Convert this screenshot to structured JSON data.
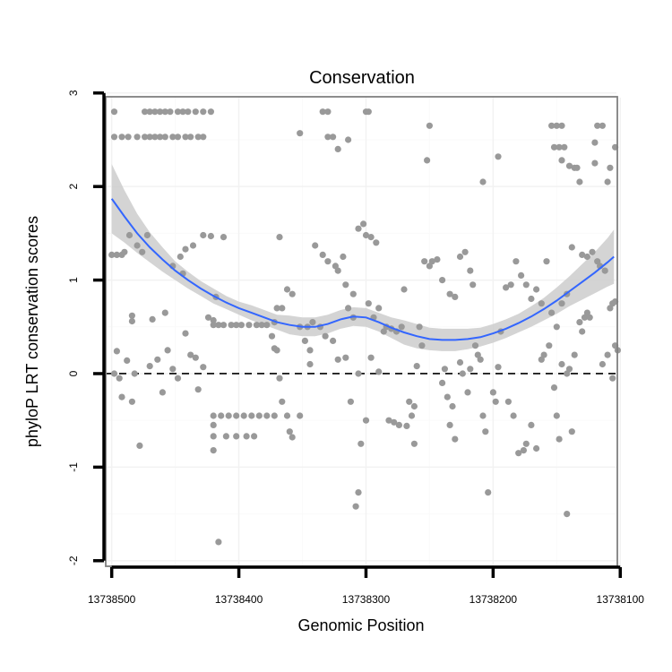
{
  "chart_data": {
    "type": "scatter",
    "title": "Conservation",
    "xlabel": "Genomic Position",
    "ylabel": "phyloP LRT conservation scores",
    "x_reversed": true,
    "xlim": [
      13738504,
      13738103
    ],
    "ylim": [
      -2.05,
      2.95
    ],
    "x_ticks": [
      13738500,
      13738400,
      13738300,
      13738200,
      13738100
    ],
    "x_tick_labels": [
      "13738500",
      "13738400",
      "13738300",
      "13738200",
      "13738100"
    ],
    "y_ticks": [
      -2,
      -1,
      0,
      1,
      2,
      3
    ],
    "y_tick_labels": [
      "-2",
      "-1",
      "0",
      "1",
      "2",
      "3"
    ],
    "grid": true,
    "reference_line": {
      "y": 0,
      "style": "dashed",
      "color": "#000000"
    },
    "point_color": "#999999",
    "smooth_color": "#3366ff",
    "band_color": "#cccccc",
    "points": [
      [
        13738498,
        2.8
      ],
      [
        13738498,
        2.53
      ],
      [
        13738492,
        2.53
      ],
      [
        13738487,
        2.53
      ],
      [
        13738480,
        2.53
      ],
      [
        13738474,
        2.8
      ],
      [
        13738470,
        2.8
      ],
      [
        13738466,
        2.8
      ],
      [
        13738462,
        2.8
      ],
      [
        13738458,
        2.8
      ],
      [
        13738454,
        2.8
      ],
      [
        13738448,
        2.8
      ],
      [
        13738444,
        2.8
      ],
      [
        13738440,
        2.8
      ],
      [
        13738434,
        2.8
      ],
      [
        13738428,
        2.8
      ],
      [
        13738422,
        2.8
      ],
      [
        13738474,
        2.53
      ],
      [
        13738470,
        2.53
      ],
      [
        13738466,
        2.53
      ],
      [
        13738462,
        2.53
      ],
      [
        13738458,
        2.53
      ],
      [
        13738452,
        2.53
      ],
      [
        13738448,
        2.53
      ],
      [
        13738442,
        2.53
      ],
      [
        13738438,
        2.53
      ],
      [
        13738432,
        2.53
      ],
      [
        13738428,
        2.53
      ],
      [
        13738500,
        1.27
      ],
      [
        13738496,
        1.27
      ],
      [
        13738492,
        1.27
      ],
      [
        13738490,
        1.3
      ],
      [
        13738486,
        1.48
      ],
      [
        13738480,
        1.37
      ],
      [
        13738476,
        1.3
      ],
      [
        13738472,
        1.48
      ],
      [
        13738468,
        0.58
      ],
      [
        13738484,
        0.62
      ],
      [
        13738484,
        0.56
      ],
      [
        13738458,
        0.65
      ],
      [
        13738452,
        1.15
      ],
      [
        13738446,
        1.25
      ],
      [
        13738442,
        1.33
      ],
      [
        13738444,
        1.07
      ],
      [
        13738436,
        1.37
      ],
      [
        13738428,
        1.48
      ],
      [
        13738422,
        1.47
      ],
      [
        13738412,
        1.46
      ],
      [
        13738420,
        0.52
      ],
      [
        13738416,
        0.52
      ],
      [
        13738412,
        0.52
      ],
      [
        13738406,
        0.52
      ],
      [
        13738402,
        0.52
      ],
      [
        13738398,
        0.52
      ],
      [
        13738392,
        0.52
      ],
      [
        13738386,
        0.52
      ],
      [
        13738382,
        0.52
      ],
      [
        13738378,
        0.52
      ],
      [
        13738372,
        0.55
      ],
      [
        13738370,
        0.7
      ],
      [
        13738366,
        0.7
      ],
      [
        13738362,
        0.9
      ],
      [
        13738358,
        0.85
      ],
      [
        13738352,
        0.5
      ],
      [
        13738346,
        0.5
      ],
      [
        13738342,
        0.55
      ],
      [
        13738498,
        0.0
      ],
      [
        13738496,
        0.24
      ],
      [
        13738494,
        -0.05
      ],
      [
        13738492,
        -0.25
      ],
      [
        13738488,
        0.14
      ],
      [
        13738484,
        -0.3
      ],
      [
        13738482,
        0.0
      ],
      [
        13738478,
        -0.77
      ],
      [
        13738470,
        0.08
      ],
      [
        13738464,
        0.15
      ],
      [
        13738460,
        -0.2
      ],
      [
        13738456,
        0.25
      ],
      [
        13738452,
        0.05
      ],
      [
        13738448,
        -0.05
      ],
      [
        13738442,
        0.43
      ],
      [
        13738438,
        0.2
      ],
      [
        13738434,
        0.17
      ],
      [
        13738432,
        -0.17
      ],
      [
        13738428,
        0.07
      ],
      [
        13738424,
        0.6
      ],
      [
        13738420,
        0.57
      ],
      [
        13738418,
        0.82
      ],
      [
        13738420,
        -0.45
      ],
      [
        13738414,
        -0.45
      ],
      [
        13738408,
        -0.45
      ],
      [
        13738402,
        -0.45
      ],
      [
        13738396,
        -0.45
      ],
      [
        13738390,
        -0.45
      ],
      [
        13738384,
        -0.45
      ],
      [
        13738378,
        -0.45
      ],
      [
        13738372,
        -0.45
      ],
      [
        13738420,
        -0.55
      ],
      [
        13738420,
        -0.67
      ],
      [
        13738410,
        -0.67
      ],
      [
        13738402,
        -0.67
      ],
      [
        13738394,
        -0.67
      ],
      [
        13738388,
        -0.67
      ],
      [
        13738420,
        -0.82
      ],
      [
        13738416,
        -1.8
      ],
      [
        13738374,
        0.4
      ],
      [
        13738372,
        0.27
      ],
      [
        13738370,
        0.25
      ],
      [
        13738368,
        -0.05
      ],
      [
        13738366,
        -0.3
      ],
      [
        13738362,
        -0.45
      ],
      [
        13738360,
        -0.62
      ],
      [
        13738358,
        -0.68
      ],
      [
        13738352,
        -0.45
      ],
      [
        13738348,
        0.35
      ],
      [
        13738368,
        1.46
      ],
      [
        13738352,
        2.57
      ],
      [
        13738344,
        0.25
      ],
      [
        13738344,
        0.1
      ],
      [
        13738340,
        1.37
      ],
      [
        13738334,
        2.8
      ],
      [
        13738330,
        2.8
      ],
      [
        13738330,
        2.53
      ],
      [
        13738326,
        2.53
      ],
      [
        13738322,
        2.4
      ],
      [
        13738314,
        2.5
      ],
      [
        13738300,
        2.8
      ],
      [
        13738298,
        2.8
      ],
      [
        13738334,
        1.27
      ],
      [
        13738330,
        1.2
      ],
      [
        13738324,
        1.15
      ],
      [
        13738322,
        1.1
      ],
      [
        13738318,
        1.25
      ],
      [
        13738316,
        0.95
      ],
      [
        13738314,
        0.7
      ],
      [
        13738310,
        0.85
      ],
      [
        13738306,
        1.55
      ],
      [
        13738302,
        1.6
      ],
      [
        13738300,
        1.48
      ],
      [
        13738296,
        1.46
      ],
      [
        13738292,
        1.4
      ],
      [
        13738298,
        0.75
      ],
      [
        13738294,
        0.6
      ],
      [
        13738290,
        0.7
      ],
      [
        13738310,
        0.6
      ],
      [
        13738336,
        0.5
      ],
      [
        13738332,
        0.4
      ],
      [
        13738326,
        0.35
      ],
      [
        13738322,
        0.15
      ],
      [
        13738316,
        0.17
      ],
      [
        13738312,
        -0.3
      ],
      [
        13738306,
        0.0
      ],
      [
        13738300,
        -0.5
      ],
      [
        13738304,
        -0.75
      ],
      [
        13738306,
        -1.27
      ],
      [
        13738308,
        -1.42
      ],
      [
        13738296,
        0.17
      ],
      [
        13738290,
        0.02
      ],
      [
        13738286,
        0.45
      ],
      [
        13738284,
        0.5
      ],
      [
        13738280,
        0.48
      ],
      [
        13738276,
        0.45
      ],
      [
        13738272,
        0.5
      ],
      [
        13738270,
        0.9
      ],
      [
        13738282,
        -0.5
      ],
      [
        13738278,
        -0.52
      ],
      [
        13738274,
        -0.55
      ],
      [
        13738268,
        -0.56
      ],
      [
        13738262,
        -0.75
      ],
      [
        13738266,
        -0.3
      ],
      [
        13738264,
        -0.45
      ],
      [
        13738262,
        -0.35
      ],
      [
        13738260,
        0.08
      ],
      [
        13738258,
        0.5
      ],
      [
        13738256,
        0.3
      ],
      [
        13738254,
        1.2
      ],
      [
        13738250,
        1.15
      ],
      [
        13738248,
        1.2
      ],
      [
        13738244,
        1.22
      ],
      [
        13738240,
        1.0
      ],
      [
        13738234,
        0.85
      ],
      [
        13738230,
        0.82
      ],
      [
        13738226,
        1.25
      ],
      [
        13738222,
        1.3
      ],
      [
        13738218,
        1.1
      ],
      [
        13738216,
        0.95
      ],
      [
        13738250,
        2.65
      ],
      [
        13738252,
        2.28
      ],
      [
        13738240,
        -0.1
      ],
      [
        13738238,
        0.05
      ],
      [
        13738236,
        -0.25
      ],
      [
        13738234,
        -0.55
      ],
      [
        13738232,
        -0.35
      ],
      [
        13738230,
        -0.7
      ],
      [
        13738226,
        0.12
      ],
      [
        13738224,
        0.0
      ],
      [
        13738220,
        -0.2
      ],
      [
        13738218,
        0.05
      ],
      [
        13738214,
        0.3
      ],
      [
        13738212,
        0.2
      ],
      [
        13738210,
        0.15
      ],
      [
        13738208,
        -0.45
      ],
      [
        13738206,
        -0.62
      ],
      [
        13738204,
        -1.27
      ],
      [
        13738200,
        -0.2
      ],
      [
        13738198,
        -0.3
      ],
      [
        13738196,
        0.07
      ],
      [
        13738194,
        0.45
      ],
      [
        13738190,
        0.92
      ],
      [
        13738186,
        0.95
      ],
      [
        13738182,
        1.2
      ],
      [
        13738178,
        1.05
      ],
      [
        13738174,
        0.95
      ],
      [
        13738170,
        0.8
      ],
      [
        13738166,
        0.9
      ],
      [
        13738162,
        0.75
      ],
      [
        13738158,
        1.2
      ],
      [
        13738154,
        0.65
      ],
      [
        13738150,
        0.5
      ],
      [
        13738146,
        0.75
      ],
      [
        13738142,
        0.85
      ],
      [
        13738208,
        2.05
      ],
      [
        13738196,
        2.32
      ],
      [
        13738188,
        -0.3
      ],
      [
        13738184,
        -0.45
      ],
      [
        13738180,
        -0.85
      ],
      [
        13738176,
        -0.82
      ],
      [
        13738174,
        -0.75
      ],
      [
        13738170,
        -0.55
      ],
      [
        13738166,
        -0.8
      ],
      [
        13738162,
        0.15
      ],
      [
        13738160,
        0.2
      ],
      [
        13738156,
        0.3
      ],
      [
        13738152,
        -0.15
      ],
      [
        13738150,
        -0.45
      ],
      [
        13738148,
        -0.7
      ],
      [
        13738146,
        0.1
      ],
      [
        13738142,
        0.0
      ],
      [
        13738140,
        0.05
      ],
      [
        13738136,
        0.2
      ],
      [
        13738132,
        0.55
      ],
      [
        13738130,
        0.45
      ],
      [
        13738128,
        0.6
      ],
      [
        13738126,
        0.65
      ],
      [
        13738124,
        0.6
      ],
      [
        13738122,
        1.3
      ],
      [
        13738118,
        1.2
      ],
      [
        13738116,
        1.15
      ],
      [
        13738112,
        1.1
      ],
      [
        13738108,
        0.7
      ],
      [
        13738106,
        0.75
      ],
      [
        13738104,
        0.3
      ],
      [
        13738102,
        0.25
      ],
      [
        13738110,
        0.2
      ],
      [
        13738114,
        0.1
      ],
      [
        13738138,
        -0.62
      ],
      [
        13738142,
        -1.5
      ],
      [
        13738154,
        2.65
      ],
      [
        13738150,
        2.65
      ],
      [
        13738146,
        2.65
      ],
      [
        13738152,
        2.42
      ],
      [
        13738148,
        2.42
      ],
      [
        13738144,
        2.42
      ],
      [
        13738146,
        2.28
      ],
      [
        13738140,
        2.22
      ],
      [
        13738136,
        2.2
      ],
      [
        13738134,
        2.2
      ],
      [
        13738132,
        2.05
      ],
      [
        13738118,
        2.65
      ],
      [
        13738114,
        2.65
      ],
      [
        13738120,
        2.47
      ],
      [
        13738120,
        2.25
      ],
      [
        13738108,
        2.2
      ],
      [
        13738104,
        2.42
      ],
      [
        13738110,
        2.05
      ],
      [
        13738130,
        1.27
      ],
      [
        13738126,
        1.25
      ],
      [
        13738138,
        1.35
      ],
      [
        13738104,
        0.77
      ],
      [
        13738106,
        -0.05
      ]
    ],
    "smooth": {
      "x": [
        13738500,
        13738490,
        13738480,
        13738470,
        13738460,
        13738450,
        13738440,
        13738430,
        13738420,
        13738410,
        13738400,
        13738390,
        13738380,
        13738370,
        13738360,
        13738350,
        13738340,
        13738330,
        13738320,
        13738310,
        13738300,
        13738290,
        13738280,
        13738270,
        13738260,
        13738250,
        13738240,
        13738230,
        13738220,
        13738210,
        13738200,
        13738190,
        13738180,
        13738170,
        13738160,
        13738150,
        13738140,
        13738130,
        13738120,
        13738110,
        13738105
      ],
      "y": [
        1.87,
        1.68,
        1.5,
        1.35,
        1.22,
        1.1,
        1.0,
        0.91,
        0.83,
        0.76,
        0.7,
        0.65,
        0.6,
        0.55,
        0.52,
        0.5,
        0.5,
        0.53,
        0.58,
        0.61,
        0.6,
        0.55,
        0.49,
        0.44,
        0.4,
        0.37,
        0.36,
        0.36,
        0.37,
        0.39,
        0.43,
        0.48,
        0.54,
        0.61,
        0.69,
        0.78,
        0.88,
        0.98,
        1.08,
        1.19,
        1.25
      ],
      "lower": [
        1.5,
        1.4,
        1.29,
        1.19,
        1.09,
        1.0,
        0.91,
        0.83,
        0.75,
        0.69,
        0.63,
        0.57,
        0.52,
        0.47,
        0.42,
        0.4,
        0.4,
        0.43,
        0.48,
        0.51,
        0.5,
        0.45,
        0.38,
        0.31,
        0.27,
        0.25,
        0.24,
        0.24,
        0.26,
        0.29,
        0.33,
        0.38,
        0.44,
        0.5,
        0.57,
        0.64,
        0.72,
        0.79,
        0.86,
        0.93,
        0.96
      ],
      "upper": [
        2.24,
        1.96,
        1.71,
        1.51,
        1.35,
        1.2,
        1.09,
        0.99,
        0.91,
        0.83,
        0.77,
        0.73,
        0.68,
        0.63,
        0.62,
        0.6,
        0.6,
        0.63,
        0.68,
        0.71,
        0.7,
        0.65,
        0.6,
        0.57,
        0.53,
        0.49,
        0.48,
        0.48,
        0.48,
        0.49,
        0.53,
        0.58,
        0.64,
        0.72,
        0.81,
        0.92,
        1.04,
        1.17,
        1.3,
        1.45,
        1.54
      ]
    }
  }
}
